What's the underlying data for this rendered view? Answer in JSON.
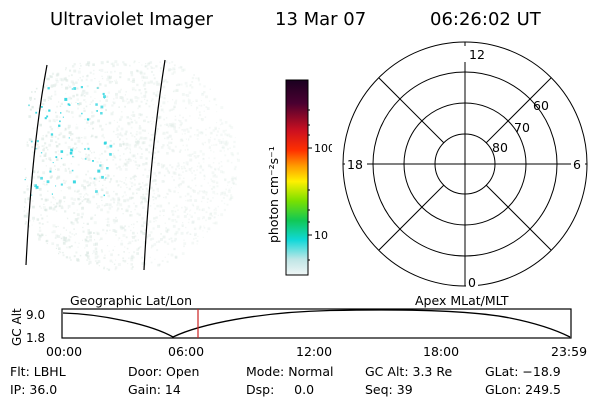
{
  "header": {
    "instrument": "Ultraviolet Imager",
    "date": "13 Mar 07",
    "time": "06:26:02 UT"
  },
  "colorbar": {
    "unit_label": "photon cm⁻²s⁻¹",
    "ticks": [
      "100",
      "10"
    ]
  },
  "polar": {
    "mlt_labels": {
      "top": "12",
      "left": "18",
      "right": "6",
      "bottom": "0"
    },
    "lat_labels": [
      "60",
      "70",
      "80"
    ]
  },
  "altitude": {
    "y_label": "GC Alt",
    "y_ticks": [
      "9.0",
      "1.8"
    ],
    "left_title": "Geographic Lat/Lon",
    "right_title": "Apex MLat/MLT",
    "x_ticks": [
      "00:00",
      "06:00",
      "12:00",
      "18:00",
      "23:59"
    ]
  },
  "info": {
    "row1": [
      {
        "key": "flt",
        "text": "Flt: LBHL"
      },
      {
        "key": "door",
        "text": "Door: Open"
      },
      {
        "key": "mode",
        "text": "Mode: Normal"
      },
      {
        "key": "gcalt",
        "text": "GC Alt: 3.3 Re"
      },
      {
        "key": "glat",
        "text": "GLat: −18.9"
      }
    ],
    "row2": [
      {
        "key": "ip",
        "text": "IP: 36.0"
      },
      {
        "key": "gain",
        "text": "Gain: 14"
      },
      {
        "key": "dsp",
        "text": "Dsp:     0.0"
      },
      {
        "key": "seq",
        "text": "Seq: 39"
      },
      {
        "key": "glon",
        "text": "GLon: 249.5"
      }
    ]
  },
  "colors": {
    "background": "#ffffff",
    "foreground": "#000000",
    "current_time_marker": "#cc2222",
    "emission_dim": "#d8e6e0",
    "emission_bright": "#33d6e0"
  }
}
